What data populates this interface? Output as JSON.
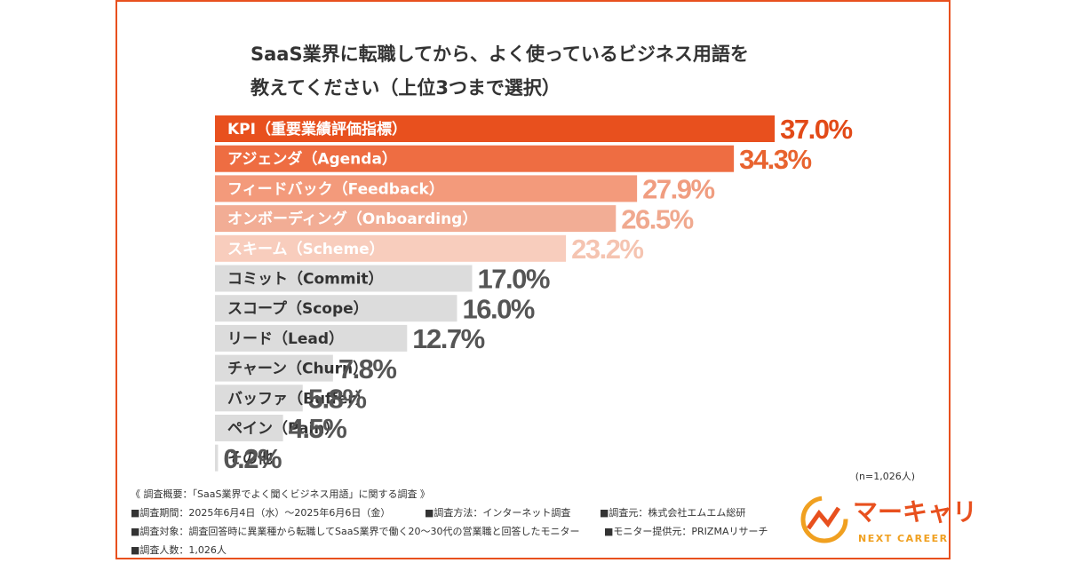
{
  "chart_data": {
    "type": "bar",
    "orientation": "horizontal",
    "title": [
      "SaaS業界に転職してから、よく使っているビジネス用語を",
      "教えてください（上位3つまで選択）"
    ],
    "categories": [
      "KPI（重要業績評価指標）",
      "アジェンダ（Agenda）",
      "フィードバック（Feedback）",
      "オンボーディング（Onboarding）",
      "スキーム（Scheme）",
      "コミット（Commit）",
      "スコープ（Scope）",
      "リード（Lead）",
      "チャーン（Churn）",
      "バッファ（Buffer）",
      "ペイン（Pain）",
      "その他"
    ],
    "values": [
      37.0,
      34.3,
      27.9,
      26.5,
      23.2,
      17.0,
      16.0,
      12.7,
      7.8,
      5.8,
      4.5,
      0.2
    ],
    "value_labels": [
      "37.0%",
      "34.3%",
      "27.9%",
      "26.5%",
      "23.2%",
      "17.0%",
      "16.0%",
      "12.7%",
      "7.8%",
      "5.8%",
      "4.5%",
      "0.2%"
    ],
    "colors": [
      "#e8501e",
      "#ee6d42",
      "#f39a7b",
      "#f2ad95",
      "#f8cdbd",
      "#dcdcdc",
      "#dcdcdc",
      "#dcdcdc",
      "#dcdcdc",
      "#dcdcdc",
      "#dcdcdc",
      "#dcdcdc"
    ],
    "label_colors": [
      "#e24a18",
      "#e8632f",
      "#f09d80",
      "#f0a98f",
      "#f5c4b1",
      "#555555",
      "#555555",
      "#555555",
      "#555555",
      "#555555",
      "#555555",
      "#555555"
    ],
    "text_colors": [
      "#ffffff",
      "#ffffff",
      "#ffffff",
      "#ffffff",
      "#ffffff",
      "#333333",
      "#333333",
      "#333333",
      "#333333",
      "#333333",
      "#333333",
      "#333333"
    ],
    "sample_note": "(n=1,026人)"
  },
  "footer": {
    "heading": "《 調査概要：「SaaS業界でよく聞くビジネス用語」に関する調査 》",
    "lines": [
      [
        "■調査期間：2025年6月4日（水）～2025年6月6日（金）",
        "■調査方法：インターネット調査",
        "■調査元：株式会社エムエム総研"
      ],
      [
        "■調査対象：調査回答時に異業種から転職してSaaS業界で働く20～30代の営業職と回答したモニター",
        "■モニター提供元：PRIZMAリサーチ"
      ],
      [
        "■調査人数：1,026人"
      ]
    ]
  },
  "logo": {
    "name": "マーキャリ",
    "tagline": "NEXT CAREER"
  }
}
